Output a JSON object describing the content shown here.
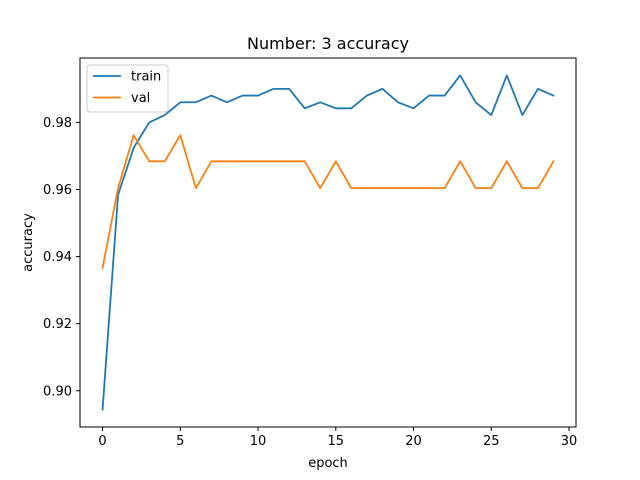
{
  "chart_data": {
    "type": "line",
    "title": "Number: 3 accuracy",
    "xlabel": "epoch",
    "ylabel": "accuracy",
    "xlim": [
      -1.45,
      30.45
    ],
    "ylim": [
      0.8892,
      0.9992
    ],
    "xticks": [
      0,
      5,
      10,
      15,
      20,
      25,
      30
    ],
    "yticks": [
      0.9,
      0.92,
      0.94,
      0.96,
      0.98
    ],
    "xtick_labels": [
      "0",
      "5",
      "10",
      "15",
      "20",
      "25",
      "30"
    ],
    "ytick_labels": [
      "0.90",
      "0.92",
      "0.94",
      "0.96",
      "0.98"
    ],
    "grid": false,
    "legend_position": "top-left",
    "x": [
      0,
      1,
      2,
      3,
      4,
      5,
      6,
      7,
      8,
      9,
      10,
      11,
      12,
      13,
      14,
      15,
      16,
      17,
      18,
      19,
      20,
      21,
      22,
      23,
      24,
      25,
      26,
      27,
      28,
      29
    ],
    "series": [
      {
        "name": "train",
        "color": "#1f77b4",
        "values": [
          0.8944,
          0.9584,
          0.9724,
          0.98,
          0.9822,
          0.986,
          0.986,
          0.988,
          0.986,
          0.988,
          0.988,
          0.99,
          0.99,
          0.9842,
          0.986,
          0.9842,
          0.9842,
          0.988,
          0.99,
          0.986,
          0.9842,
          0.988,
          0.988,
          0.994,
          0.986,
          0.9822,
          0.994,
          0.9822,
          0.99,
          0.988
        ]
      },
      {
        "name": "val",
        "color": "#ff7f0e",
        "values": [
          0.9366,
          0.9604,
          0.9762,
          0.9684,
          0.9684,
          0.9762,
          0.9604,
          0.9684,
          0.9684,
          0.9684,
          0.9684,
          0.9684,
          0.9684,
          0.9684,
          0.9604,
          0.9684,
          0.9604,
          0.9604,
          0.9604,
          0.9604,
          0.9604,
          0.9604,
          0.9604,
          0.9684,
          0.9604,
          0.9604,
          0.9684,
          0.9604,
          0.9604,
          0.9684
        ]
      }
    ]
  }
}
